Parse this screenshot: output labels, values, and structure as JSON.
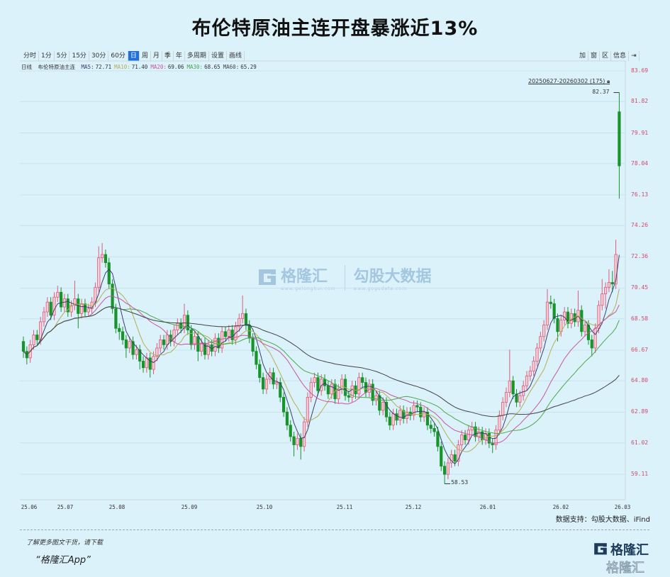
{
  "title": "布伦特原油主连开盘暴涨近13%",
  "toolbar": {
    "periods": [
      "分时",
      "1分",
      "5分",
      "15分",
      "30分",
      "60分",
      "日",
      "周",
      "月",
      "季",
      "年",
      "多周期",
      "设置",
      "画线"
    ],
    "active": "日",
    "right_tools": [
      "加",
      "窗",
      "区",
      "信息",
      "⇥"
    ]
  },
  "legend": {
    "period_label": "日线",
    "instrument": "布伦特原油主连",
    "ma": [
      {
        "label": "MA5:",
        "value": "72.71",
        "color": "#3b3f6e"
      },
      {
        "label": "MA10:",
        "value": "71.40",
        "color": "#b5ad55"
      },
      {
        "label": "MA20:",
        "value": "69.06",
        "color": "#c8559e"
      },
      {
        "label": "MA30:",
        "value": "68.65",
        "color": "#4aa84a"
      },
      {
        "label": "MA60:",
        "value": "65.29",
        "color": "#444444"
      }
    ]
  },
  "range_label": "20250627-20260302 (175)",
  "source": "数据支持：勾股大数据、iFind",
  "footer": {
    "line1": "了解更多图文干货，请下载",
    "line2": "“格隆汇App”"
  },
  "watermark": {
    "brand": "格隆汇",
    "brand_url": "www.gelonghui.com",
    "data_brand": "勾股大数据",
    "data_url": "www.gogudata.com"
  },
  "logo": {
    "text": "格隆汇",
    "text2": "格隆汇"
  },
  "colors": {
    "background": "#dcf2fb",
    "up_fill": "#f6ccd6",
    "up_stroke": "#de5b7a",
    "down": "#17942a",
    "axis_label": "#d2486a"
  },
  "chart_data": {
    "type": "candlestick",
    "title": "",
    "ylim": [
      59.11,
      83.69
    ],
    "y_ticks": [
      "83.69",
      "81.82",
      "79.91",
      "78.04",
      "76.13",
      "74.26",
      "72.36",
      "70.45",
      "68.58",
      "66.67",
      "64.80",
      "62.89",
      "61.02",
      "59.11"
    ],
    "x_ticks": [
      "25.06",
      "25.07",
      "25.08",
      "25.09",
      "25.10",
      "25.11",
      "25.12",
      "26.01",
      "26.02",
      "26.03"
    ],
    "grid": "horizontal",
    "annotations": {
      "max": "82.37",
      "min": "58.53"
    },
    "ma_periods": [
      5,
      10,
      20,
      30,
      60
    ],
    "ohlc": [
      [
        67.2,
        67.5,
        66.2,
        66.6
      ],
      [
        66.6,
        66.9,
        65.8,
        66.2
      ],
      [
        66.2,
        67.3,
        65.9,
        67.0
      ],
      [
        67.0,
        67.9,
        66.7,
        67.6
      ],
      [
        67.6,
        67.9,
        67.0,
        67.3
      ],
      [
        67.3,
        68.7,
        67.0,
        68.4
      ],
      [
        68.4,
        69.3,
        68.1,
        69.0
      ],
      [
        69.0,
        69.9,
        68.7,
        69.6
      ],
      [
        69.6,
        69.9,
        68.5,
        68.8
      ],
      [
        68.8,
        70.2,
        68.5,
        69.9
      ],
      [
        69.9,
        70.6,
        69.6,
        70.2
      ],
      [
        70.2,
        70.5,
        69.0,
        69.3
      ],
      [
        69.3,
        70.1,
        69.0,
        69.8
      ],
      [
        69.8,
        70.1,
        68.7,
        69.0
      ],
      [
        69.0,
        69.7,
        68.7,
        69.4
      ],
      [
        69.4,
        70.9,
        69.1,
        69.8
      ],
      [
        69.8,
        70.1,
        68.0,
        68.9
      ],
      [
        68.9,
        69.8,
        68.6,
        69.5
      ],
      [
        69.5,
        69.8,
        68.7,
        69.0
      ],
      [
        69.0,
        69.5,
        68.7,
        69.2
      ],
      [
        69.2,
        69.9,
        68.9,
        69.6
      ],
      [
        69.6,
        70.8,
        69.3,
        70.5
      ],
      [
        70.5,
        73.0,
        70.2,
        72.3
      ],
      [
        72.3,
        73.2,
        72.0,
        72.5
      ],
      [
        72.5,
        72.8,
        71.7,
        72.0
      ],
      [
        72.0,
        72.3,
        70.4,
        70.7
      ],
      [
        70.7,
        71.0,
        68.9,
        69.2
      ],
      [
        69.2,
        69.5,
        67.7,
        68.0
      ],
      [
        68.0,
        68.3,
        67.3,
        67.8
      ],
      [
        67.8,
        68.1,
        67.0,
        67.3
      ],
      [
        67.3,
        67.6,
        66.2,
        66.8
      ],
      [
        66.8,
        67.5,
        66.5,
        67.2
      ],
      [
        67.2,
        67.5,
        66.1,
        66.4
      ],
      [
        66.4,
        67.0,
        66.1,
        66.7
      ],
      [
        66.7,
        67.0,
        65.5,
        66.0
      ],
      [
        66.0,
        66.3,
        65.3,
        65.6
      ],
      [
        65.6,
        66.5,
        65.3,
        66.2
      ],
      [
        66.2,
        66.5,
        65.0,
        65.5
      ],
      [
        65.5,
        66.6,
        65.2,
        66.3
      ],
      [
        66.3,
        67.1,
        66.0,
        66.8
      ],
      [
        66.8,
        67.6,
        66.5,
        67.3
      ],
      [
        67.3,
        67.6,
        66.7,
        67.0
      ],
      [
        67.0,
        67.9,
        66.7,
        67.6
      ],
      [
        67.6,
        67.9,
        66.9,
        67.2
      ],
      [
        67.2,
        68.2,
        66.9,
        67.9
      ],
      [
        67.9,
        68.6,
        67.6,
        68.3
      ],
      [
        68.3,
        68.6,
        67.7,
        68.0
      ],
      [
        68.0,
        69.5,
        67.7,
        68.8
      ],
      [
        68.8,
        69.1,
        67.6,
        67.9
      ],
      [
        67.9,
        68.2,
        66.7,
        67.0
      ],
      [
        67.0,
        67.8,
        66.7,
        67.5
      ],
      [
        67.5,
        67.8,
        66.0,
        66.6
      ],
      [
        66.6,
        67.4,
        66.3,
        67.1
      ],
      [
        67.1,
        67.4,
        66.1,
        66.4
      ],
      [
        66.4,
        67.3,
        66.1,
        67.0
      ],
      [
        67.0,
        67.3,
        66.3,
        66.6
      ],
      [
        66.6,
        67.7,
        66.3,
        67.4
      ],
      [
        67.4,
        67.7,
        66.5,
        66.8
      ],
      [
        66.8,
        68.1,
        66.5,
        67.8
      ],
      [
        67.8,
        68.1,
        67.2,
        67.5
      ],
      [
        67.5,
        68.2,
        67.2,
        67.9
      ],
      [
        67.9,
        68.2,
        67.0,
        67.3
      ],
      [
        67.3,
        68.4,
        67.0,
        68.1
      ],
      [
        68.1,
        68.9,
        67.8,
        68.6
      ],
      [
        68.6,
        70.0,
        68.3,
        68.9
      ],
      [
        68.9,
        69.2,
        67.9,
        68.2
      ],
      [
        68.2,
        68.5,
        67.1,
        67.4
      ],
      [
        67.4,
        67.7,
        66.3,
        66.6
      ],
      [
        66.6,
        66.9,
        65.5,
        65.8
      ],
      [
        65.8,
        66.1,
        64.7,
        65.0
      ],
      [
        65.0,
        65.3,
        64.0,
        64.3
      ],
      [
        64.3,
        65.2,
        64.0,
        64.9
      ],
      [
        64.9,
        65.6,
        64.6,
        65.3
      ],
      [
        65.3,
        65.6,
        64.3,
        64.6
      ],
      [
        64.6,
        65.0,
        64.3,
        64.7
      ],
      [
        64.7,
        65.0,
        63.5,
        63.8
      ],
      [
        63.8,
        64.1,
        62.6,
        62.9
      ],
      [
        62.9,
        63.2,
        61.8,
        62.1
      ],
      [
        62.1,
        62.4,
        61.1,
        61.4
      ],
      [
        61.4,
        61.7,
        60.2,
        60.9
      ],
      [
        60.9,
        61.6,
        60.6,
        61.3
      ],
      [
        61.3,
        61.6,
        60.0,
        60.8
      ],
      [
        60.8,
        62.6,
        60.5,
        62.3
      ],
      [
        62.3,
        64.1,
        62.0,
        63.8
      ],
      [
        63.8,
        65.0,
        63.5,
        64.7
      ],
      [
        64.7,
        65.3,
        64.4,
        65.0
      ],
      [
        65.0,
        65.3,
        63.9,
        64.2
      ],
      [
        64.2,
        65.2,
        63.9,
        64.9
      ],
      [
        64.9,
        65.2,
        64.2,
        64.5
      ],
      [
        64.5,
        64.8,
        63.7,
        64.0
      ],
      [
        64.0,
        64.9,
        63.7,
        64.6
      ],
      [
        64.6,
        64.9,
        63.4,
        63.7
      ],
      [
        63.7,
        64.6,
        63.4,
        64.3
      ],
      [
        64.3,
        65.2,
        64.0,
        64.9
      ],
      [
        64.9,
        65.2,
        63.6,
        63.9
      ],
      [
        63.9,
        64.2,
        63.5,
        63.8
      ],
      [
        63.8,
        64.8,
        63.5,
        64.5
      ],
      [
        64.5,
        64.8,
        63.7,
        64.0
      ],
      [
        64.0,
        65.3,
        63.7,
        65.0
      ],
      [
        65.0,
        65.3,
        64.4,
        64.7
      ],
      [
        64.7,
        65.0,
        63.8,
        64.1
      ],
      [
        64.1,
        64.9,
        63.8,
        64.6
      ],
      [
        64.6,
        64.9,
        63.3,
        63.6
      ],
      [
        63.6,
        64.2,
        63.3,
        63.9
      ],
      [
        63.9,
        64.2,
        62.7,
        63.0
      ],
      [
        63.0,
        63.8,
        62.7,
        63.5
      ],
      [
        63.5,
        63.8,
        62.3,
        62.6
      ],
      [
        62.6,
        62.9,
        61.8,
        62.1
      ],
      [
        62.1,
        63.1,
        61.8,
        62.8
      ],
      [
        62.8,
        63.1,
        62.1,
        62.4
      ],
      [
        62.4,
        63.3,
        62.1,
        63.0
      ],
      [
        63.0,
        63.3,
        62.2,
        62.5
      ],
      [
        62.5,
        63.2,
        62.2,
        62.9
      ],
      [
        62.9,
        63.2,
        62.4,
        62.7
      ],
      [
        62.7,
        63.6,
        62.4,
        63.3
      ],
      [
        63.3,
        63.6,
        62.9,
        63.2
      ],
      [
        63.2,
        63.5,
        62.3,
        62.6
      ],
      [
        62.6,
        63.2,
        62.3,
        62.9
      ],
      [
        62.9,
        63.2,
        61.8,
        62.1
      ],
      [
        62.1,
        62.4,
        61.6,
        61.9
      ],
      [
        61.9,
        62.2,
        61.4,
        61.7
      ],
      [
        61.7,
        62.0,
        60.5,
        60.8
      ],
      [
        60.8,
        61.1,
        59.3,
        59.6
      ],
      [
        59.6,
        59.9,
        58.53,
        59.1
      ],
      [
        59.1,
        60.1,
        58.8,
        59.8
      ],
      [
        59.8,
        60.6,
        59.5,
        60.3
      ],
      [
        60.3,
        60.6,
        59.6,
        59.9
      ],
      [
        59.9,
        61.2,
        59.6,
        60.9
      ],
      [
        60.9,
        61.8,
        60.6,
        61.5
      ],
      [
        61.5,
        61.8,
        60.9,
        61.2
      ],
      [
        61.2,
        62.1,
        60.9,
        61.8
      ],
      [
        61.8,
        62.3,
        61.5,
        62.0
      ],
      [
        62.0,
        62.3,
        61.1,
        61.4
      ],
      [
        61.4,
        62.0,
        61.1,
        61.7
      ],
      [
        61.7,
        62.0,
        60.9,
        61.2
      ],
      [
        61.2,
        61.9,
        60.9,
        61.6
      ],
      [
        61.6,
        61.9,
        60.7,
        61.0
      ],
      [
        61.0,
        61.3,
        60.4,
        60.9
      ],
      [
        60.9,
        62.1,
        60.6,
        61.8
      ],
      [
        61.8,
        63.0,
        61.5,
        62.7
      ],
      [
        62.7,
        63.8,
        62.4,
        63.5
      ],
      [
        63.5,
        64.4,
        63.2,
        64.1
      ],
      [
        64.1,
        66.7,
        63.8,
        64.8
      ],
      [
        64.8,
        65.1,
        63.7,
        64.0
      ],
      [
        64.0,
        64.3,
        63.2,
        63.5
      ],
      [
        63.5,
        64.2,
        63.2,
        63.9
      ],
      [
        63.9,
        64.8,
        63.6,
        64.5
      ],
      [
        64.5,
        65.4,
        64.2,
        65.1
      ],
      [
        65.1,
        65.7,
        64.8,
        65.4
      ],
      [
        65.4,
        66.3,
        65.1,
        66.0
      ],
      [
        66.0,
        67.1,
        65.7,
        66.8
      ],
      [
        66.8,
        67.8,
        66.5,
        67.5
      ],
      [
        67.5,
        68.5,
        67.2,
        68.2
      ],
      [
        68.2,
        70.4,
        67.9,
        69.6
      ],
      [
        69.6,
        70.0,
        69.2,
        69.5
      ],
      [
        69.5,
        69.8,
        68.3,
        68.6
      ],
      [
        68.6,
        68.9,
        67.2,
        67.8
      ],
      [
        67.8,
        68.8,
        67.5,
        68.5
      ],
      [
        68.5,
        69.3,
        68.2,
        69.0
      ],
      [
        69.0,
        69.3,
        68.0,
        68.3
      ],
      [
        68.3,
        69.2,
        68.0,
        68.9
      ],
      [
        68.9,
        69.2,
        68.1,
        68.4
      ],
      [
        68.4,
        70.3,
        68.1,
        69.1
      ],
      [
        69.1,
        69.4,
        67.5,
        67.8
      ],
      [
        67.8,
        68.5,
        67.5,
        68.2
      ],
      [
        68.2,
        68.5,
        67.0,
        67.3
      ],
      [
        67.3,
        67.6,
        66.3,
        66.8
      ],
      [
        66.8,
        68.3,
        66.5,
        68.0
      ],
      [
        68.0,
        69.7,
        67.7,
        69.4
      ],
      [
        69.4,
        71.0,
        69.1,
        70.1
      ],
      [
        70.1,
        70.8,
        69.2,
        70.5
      ],
      [
        70.5,
        71.6,
        70.2,
        70.8
      ],
      [
        70.8,
        71.5,
        70.2,
        70.7
      ],
      [
        70.7,
        73.4,
        70.4,
        72.5
      ],
      [
        81.2,
        82.37,
        75.9,
        77.9
      ]
    ]
  }
}
